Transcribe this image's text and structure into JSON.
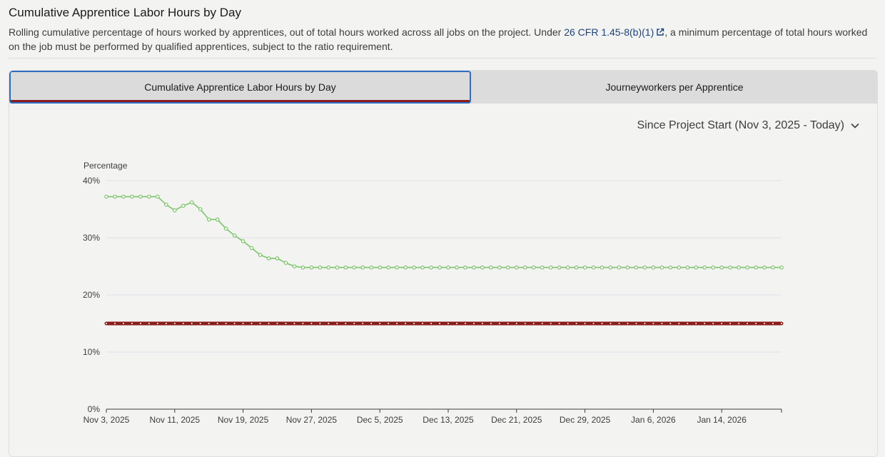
{
  "header": {
    "title": "Cumulative Apprentice Labor Hours by Day",
    "desc_before": "Rolling cumulative percentage of hours worked by apprentices, out of total hours worked across all jobs on the project. Under ",
    "link_text": "26 CFR 1.45-8(b)(1)",
    "desc_after": ", a minimum percentage of total hours worked on the job must be performed by qualified apprentices, subject to the ratio requirement."
  },
  "tabs": [
    {
      "label": "Cumulative Apprentice Labor Hours by Day",
      "active": true
    },
    {
      "label": "Journeyworkers per Apprentice",
      "active": false
    }
  ],
  "range_select": {
    "value": "Since Project Start (Nov 3, 2025 - Today)",
    "icon": "chevron-down-icon"
  },
  "colors": {
    "series": "#7fc36e",
    "threshold": "#8a1c1c",
    "link": "#1a4480",
    "active_tab_border": "#2f6cc4"
  },
  "chart_data": {
    "type": "line",
    "ylabel": "Percentage",
    "ylim": [
      0,
      40
    ],
    "y_ticks": [
      "0%",
      "10%",
      "20%",
      "30%",
      "40%"
    ],
    "x_ticks": [
      "Nov 3, 2025",
      "Nov 11, 2025",
      "Nov 19, 2025",
      "Nov 27, 2025",
      "Dec 5, 2025",
      "Dec 13, 2025",
      "Dec 21, 2025",
      "Dec 29, 2025",
      "Jan 6, 2026",
      "Jan 14, 2026"
    ],
    "grid": true,
    "series": [
      {
        "values": [
          37.2,
          37.2,
          37.2,
          37.2,
          37.2,
          37.2,
          37.2,
          35.8,
          34.8,
          35.6,
          36.2,
          35.0,
          33.2,
          33.2,
          31.6,
          30.4,
          29.4,
          28.2,
          27.0,
          26.4,
          26.4,
          25.6,
          25.0,
          24.8,
          24.8,
          24.8,
          24.8,
          24.8,
          24.8,
          24.8,
          24.8,
          24.8,
          24.8,
          24.8,
          24.8,
          24.8,
          24.8,
          24.8,
          24.8,
          24.8,
          24.8,
          24.8,
          24.8,
          24.8,
          24.8,
          24.8,
          24.8,
          24.8,
          24.8,
          24.8,
          24.8,
          24.8,
          24.8,
          24.8,
          24.8,
          24.8,
          24.8,
          24.8,
          24.8,
          24.8,
          24.8,
          24.8,
          24.8,
          24.8,
          24.8,
          24.8,
          24.8,
          24.8,
          24.8,
          24.8,
          24.8,
          24.8,
          24.8,
          24.8,
          24.8,
          24.8,
          24.8,
          24.8,
          24.8,
          24.8
        ]
      },
      {
        "values": [
          15,
          15,
          15,
          15,
          15,
          15,
          15,
          15,
          15,
          15,
          15,
          15,
          15,
          15,
          15,
          15,
          15,
          15,
          15,
          15,
          15,
          15,
          15,
          15,
          15,
          15,
          15,
          15,
          15,
          15,
          15,
          15,
          15,
          15,
          15,
          15,
          15,
          15,
          15,
          15,
          15,
          15,
          15,
          15,
          15,
          15,
          15,
          15,
          15,
          15,
          15,
          15,
          15,
          15,
          15,
          15,
          15,
          15,
          15,
          15,
          15,
          15,
          15,
          15,
          15,
          15,
          15,
          15,
          15,
          15,
          15,
          15,
          15,
          15,
          15,
          15,
          15,
          15,
          15,
          15
        ]
      }
    ]
  }
}
